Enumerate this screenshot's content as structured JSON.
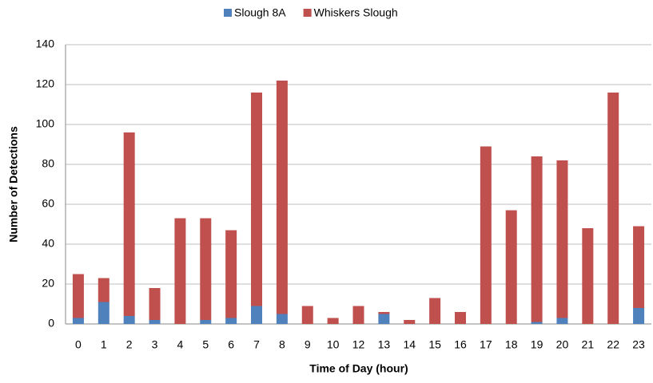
{
  "chart_data": {
    "type": "stacked_bar",
    "xlabel": "Time of Day (hour)",
    "ylabel": "Number of Detections",
    "categories": [
      "0",
      "1",
      "2",
      "3",
      "4",
      "5",
      "6",
      "7",
      "8",
      "9",
      "10",
      "12",
      "13",
      "14",
      "15",
      "16",
      "17",
      "18",
      "19",
      "20",
      "21",
      "22",
      "23"
    ],
    "series": [
      {
        "name": "Slough 8A",
        "color": "#4f81bd",
        "values": [
          3,
          11,
          4,
          2,
          0,
          2,
          3,
          9,
          5,
          0,
          0,
          0,
          5,
          0,
          0,
          0,
          0,
          0,
          1,
          3,
          0,
          0,
          8
        ]
      },
      {
        "name": "Whiskers Slough",
        "color": "#c0504d",
        "values": [
          22,
          12,
          92,
          16,
          53,
          51,
          44,
          107,
          117,
          9,
          3,
          9,
          1,
          2,
          13,
          6,
          89,
          57,
          83,
          79,
          48,
          116,
          41
        ]
      }
    ],
    "ylim": [
      0,
      140
    ],
    "yticks": [
      0,
      20,
      40,
      60,
      80,
      100,
      120,
      140
    ],
    "grid": true,
    "legend": "top"
  }
}
